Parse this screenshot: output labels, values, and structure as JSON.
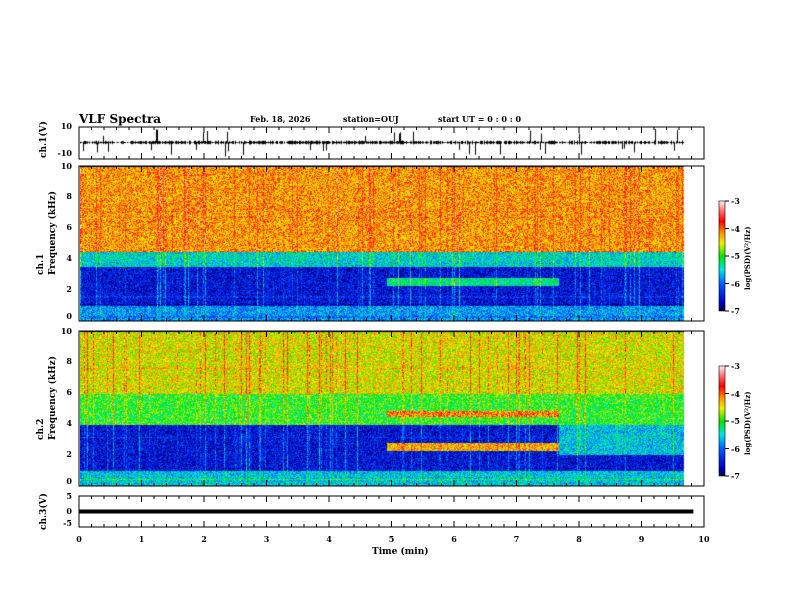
{
  "header": {
    "title": "VLF Spectra",
    "date": "Feb. 18, 2026",
    "station": "station=OUJ",
    "start": "start  UT =   0 : 0  : 0"
  },
  "chart_data": [
    {
      "type": "line",
      "name": "ch1-waveform",
      "ylabel": "ch.1(V)",
      "ylim": [
        -10,
        10
      ],
      "yticks": [
        "10",
        "-10"
      ],
      "xlim": [
        0,
        10
      ],
      "data_end_min": 9.83,
      "description_values": {
        "baseline": 0,
        "spike_range": [
          -8,
          8
        ]
      }
    },
    {
      "type": "heatmap",
      "name": "ch1-spectrogram",
      "ylabel": "ch.1\nFrequency (kHz)",
      "ylim": [
        0,
        10
      ],
      "yticks": [
        "0",
        "2",
        "4",
        "6",
        "8",
        "10"
      ],
      "xlim": [
        0,
        10
      ],
      "colorbar": {
        "label": "log(PSD)(V²/Hz)",
        "range": [
          -7,
          -3
        ],
        "ticks": [
          "-3",
          "-4",
          "-5",
          "-6",
          "-7"
        ]
      },
      "bands": [
        {
          "f": [
            0,
            1
          ],
          "level": -5.8
        },
        {
          "f": [
            1,
            3.5
          ],
          "level": -6.5
        },
        {
          "f": [
            3.5,
            4.5
          ],
          "level": -5.5
        },
        {
          "f": [
            4.5,
            10
          ],
          "level": -4.2
        },
        {
          "t": [
            5,
            7.8
          ],
          "f": [
            2.3,
            2.8
          ],
          "level": -5.3
        }
      ]
    },
    {
      "type": "heatmap",
      "name": "ch2-spectrogram",
      "ylabel": "ch.2\nFrequency (kHz)",
      "ylim": [
        0,
        10
      ],
      "yticks": [
        "0",
        "2",
        "4",
        "6",
        "8",
        "10"
      ],
      "xlim": [
        0,
        10
      ],
      "colorbar": {
        "label": "log(PSD)(V²/Hz)",
        "range": [
          -7,
          -3
        ],
        "ticks": [
          "-3",
          "-4",
          "-5",
          "-6",
          "-7"
        ]
      },
      "bands": [
        {
          "f": [
            0,
            1
          ],
          "level": -5.6
        },
        {
          "f": [
            1,
            4
          ],
          "level": -6.5
        },
        {
          "f": [
            4,
            6
          ],
          "level": -5.0
        },
        {
          "f": [
            6,
            10
          ],
          "level": -4.5
        },
        {
          "t": [
            5,
            7.8
          ],
          "f": [
            2.3,
            2.8
          ],
          "level": -4.3
        },
        {
          "t": [
            5,
            7.8
          ],
          "f": [
            4.5,
            4.9
          ],
          "level": -4.1
        },
        {
          "t": [
            7.8,
            10
          ],
          "f": [
            2,
            4
          ],
          "level": -5.6
        }
      ]
    },
    {
      "type": "line",
      "name": "ch3-waveform",
      "ylabel": "ch.3(V)",
      "ylim": [
        -5,
        5
      ],
      "yticks": [
        "5",
        "0",
        "-5"
      ],
      "xlim": [
        0,
        10
      ],
      "constant_value": -1.5
    },
    {
      "xlabel": "Time (min)",
      "xticks": [
        "0",
        "1",
        "2",
        "3",
        "4",
        "5",
        "6",
        "7",
        "8",
        "9",
        "10"
      ]
    }
  ]
}
